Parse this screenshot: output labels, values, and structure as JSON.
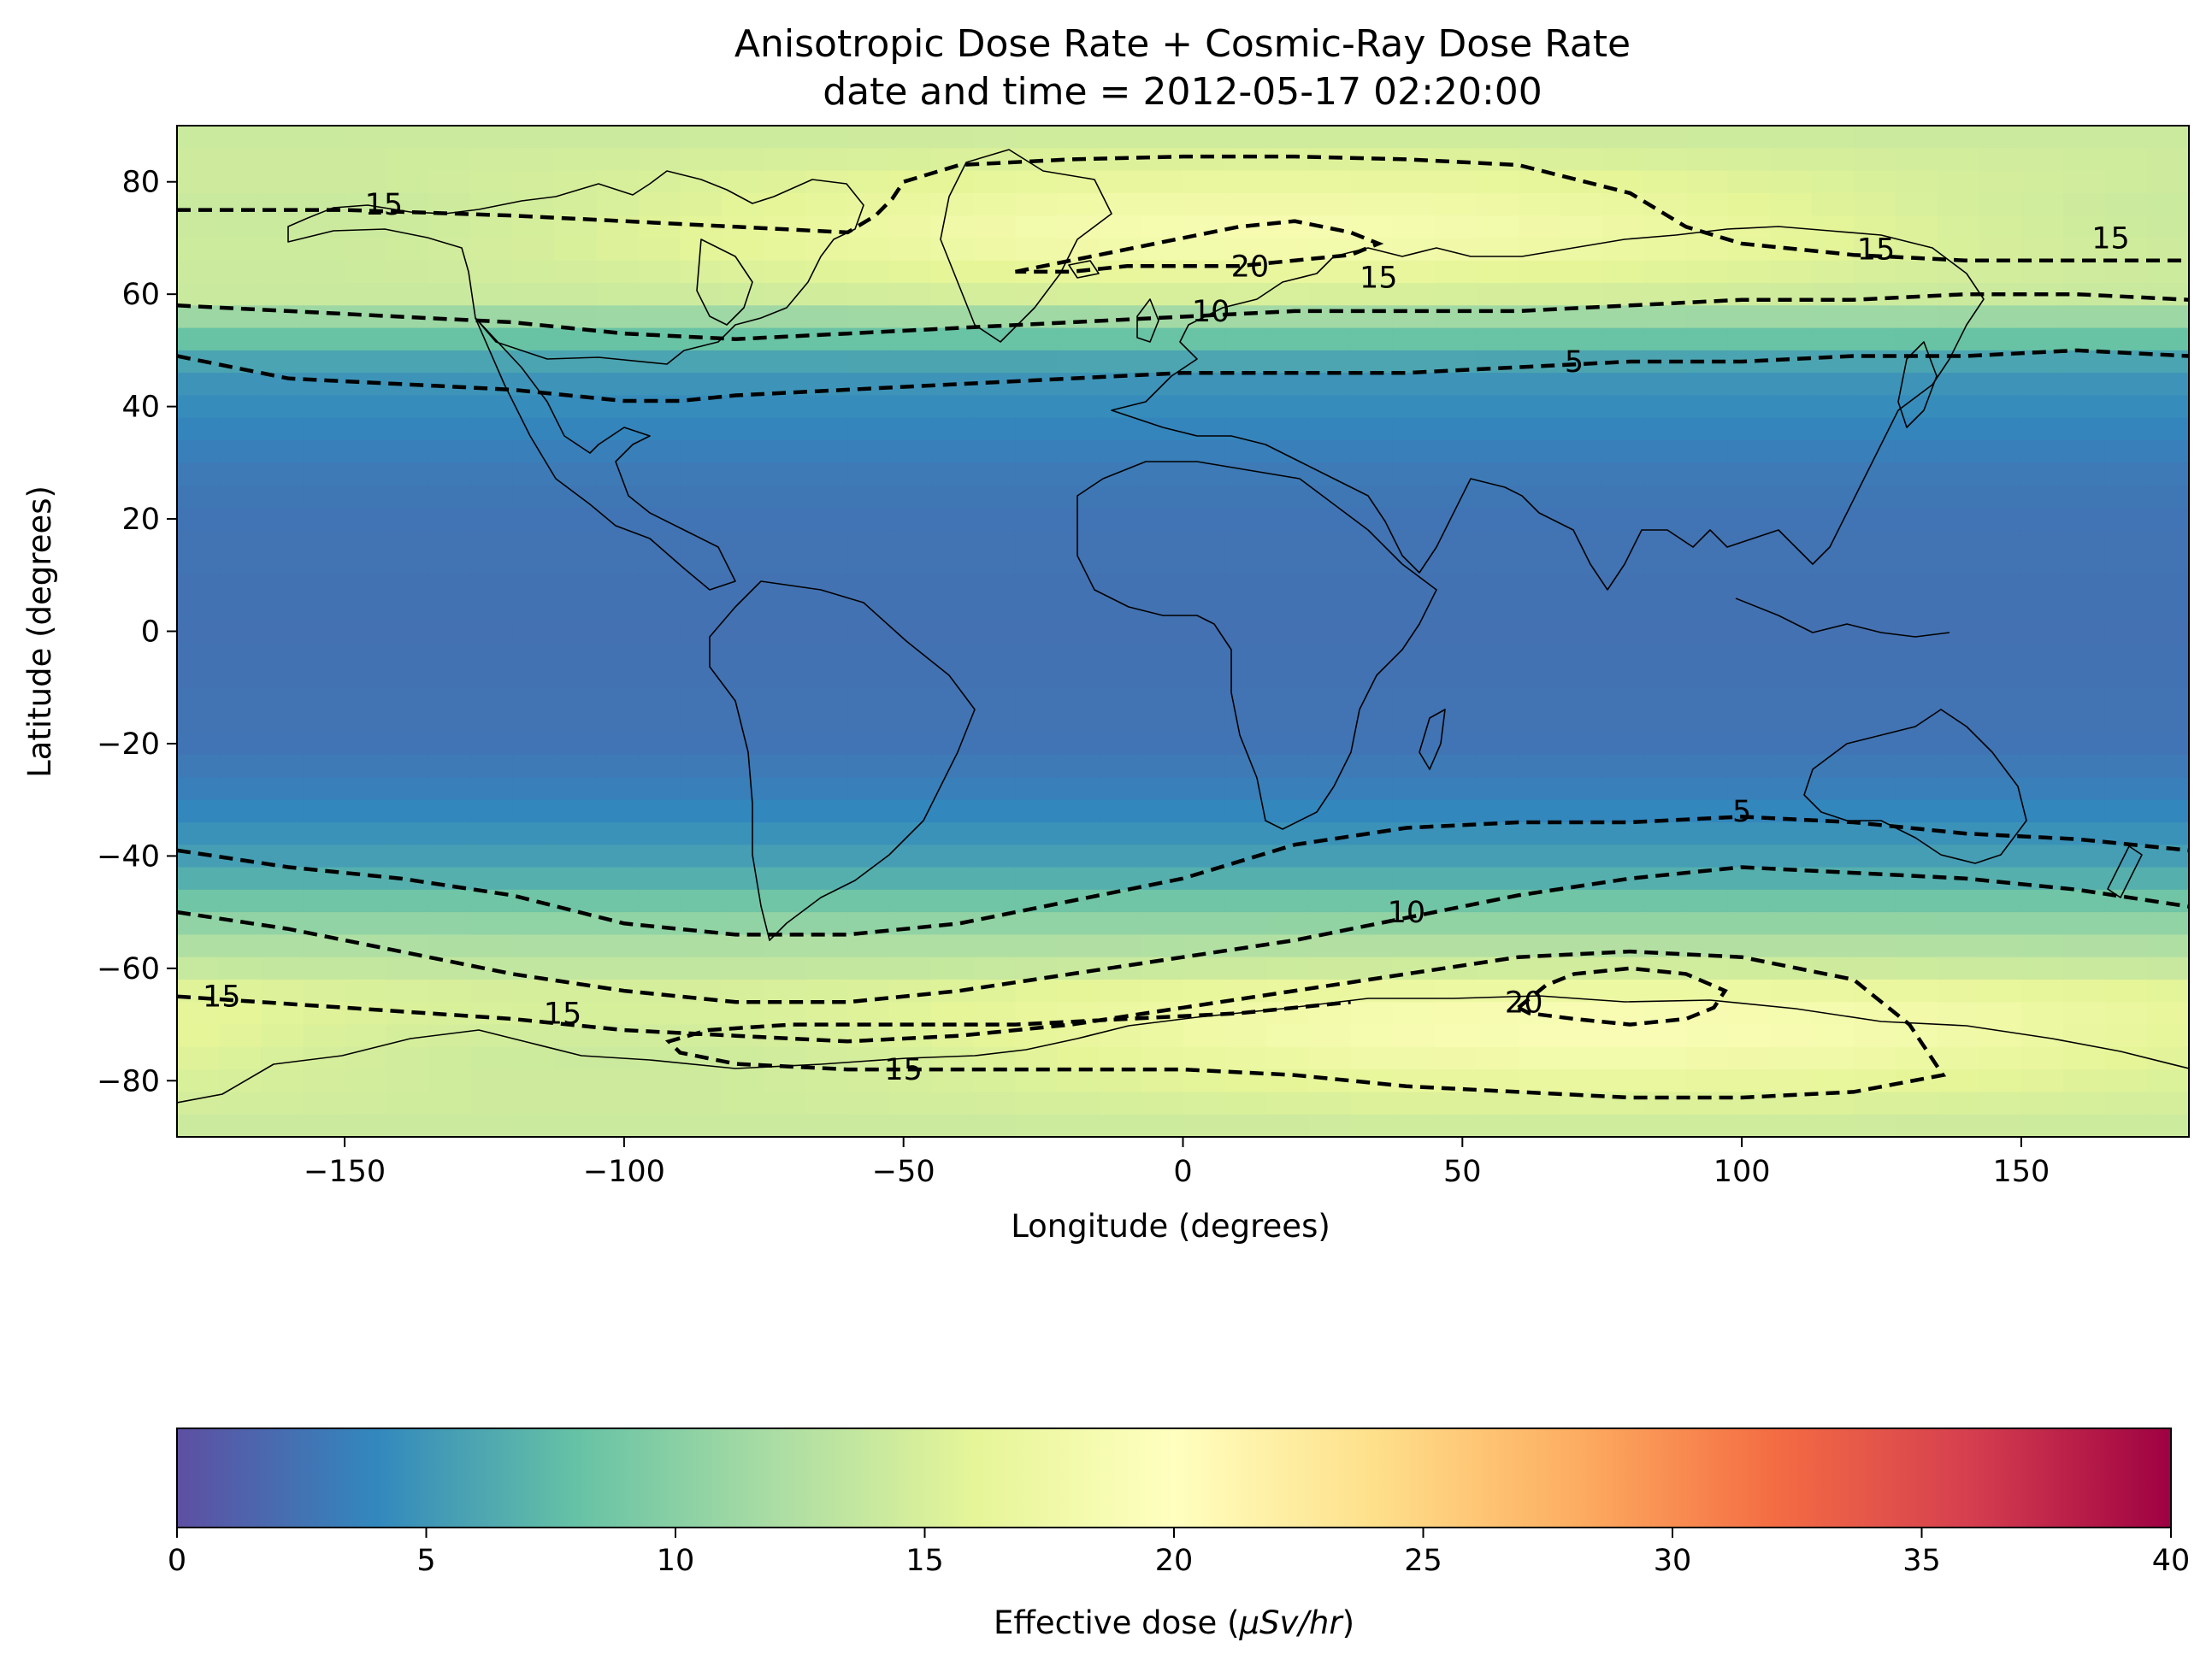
{
  "chart_data": {
    "type": "heatmap",
    "title": "Anisotropic Dose Rate + Cosmic-Ray Dose Rate",
    "subtitle": "date and time = 2012-05-17 02:20:00",
    "xlabel": "Longitude (degrees)",
    "ylabel": "Latitude (degrees)",
    "xlim": [
      -180,
      180
    ],
    "ylim": [
      -90,
      90
    ],
    "x_ticks": [
      -150,
      -100,
      -50,
      0,
      50,
      100,
      150
    ],
    "y_ticks": [
      80,
      60,
      40,
      20,
      0,
      -20,
      -40,
      -60,
      -80
    ],
    "x_tick_labels": [
      "−150",
      "−100",
      "−50",
      "0",
      "50",
      "100",
      "150"
    ],
    "y_tick_labels": [
      "80",
      "60",
      "40",
      "20",
      "0",
      "−20",
      "−40",
      "−60",
      "−80"
    ],
    "grid": false,
    "colormap": "Spectral_r",
    "colormap_stops": [
      "#5e4fa2",
      "#3288bd",
      "#66c2a5",
      "#abdda4",
      "#e6f598",
      "#ffffbf",
      "#fee08b",
      "#fdae61",
      "#f46d43",
      "#d53e4f",
      "#9e0142"
    ],
    "colorbar": {
      "label": "Effective dose (μSv/hr)",
      "label_prefix": "Effective dose (",
      "label_units": "μSv/hr",
      "label_suffix": ")",
      "range": [
        0,
        40
      ],
      "ticks": [
        0,
        5,
        10,
        15,
        20,
        25,
        30,
        35,
        40
      ],
      "tick_labels": [
        "0",
        "5",
        "10",
        "15",
        "20",
        "25",
        "30",
        "35",
        "40"
      ]
    },
    "dose_profile_by_latitude": {
      "latitudes": [
        -90,
        -80,
        -70,
        -65,
        -60,
        -55,
        -50,
        -45,
        -40,
        -35,
        -30,
        -20,
        0,
        20,
        30,
        35,
        40,
        45,
        50,
        55,
        60,
        65,
        70,
        80,
        90
      ],
      "dose_values": [
        14,
        15.5,
        17,
        16.5,
        14,
        12,
        9.5,
        7,
        5.5,
        4.5,
        3.6,
        2.6,
        2.4,
        2.6,
        3.1,
        3.7,
        4.3,
        5,
        6.6,
        10.5,
        14.5,
        15.6,
        16.5,
        15.5,
        14
      ]
    },
    "contour_levels": [
      5,
      10,
      15,
      20
    ],
    "contour_line_style": "dashed",
    "contour_labels": [
      {
        "text": "15",
        "lon": -143,
        "lat": 76
      },
      {
        "text": "20",
        "lon": 12,
        "lat": 65
      },
      {
        "text": "15",
        "lon": 35,
        "lat": 63
      },
      {
        "text": "10",
        "lon": 5,
        "lat": 57
      },
      {
        "text": "15",
        "lon": 124,
        "lat": 68
      },
      {
        "text": "15",
        "lon": 166,
        "lat": 70
      },
      {
        "text": "5",
        "lon": 70,
        "lat": 48
      },
      {
        "text": "5",
        "lon": 100,
        "lat": -32
      },
      {
        "text": "10",
        "lon": 40,
        "lat": -50
      },
      {
        "text": "20",
        "lon": 61,
        "lat": -66
      },
      {
        "text": "15",
        "lon": -172,
        "lat": -65
      },
      {
        "text": "15",
        "lon": -111,
        "lat": -68
      },
      {
        "text": "15",
        "lon": -50,
        "lat": -78
      }
    ],
    "contours": [
      {
        "level": 5,
        "lon": [
          -180,
          -160,
          -140,
          -120,
          -100,
          -90,
          -80,
          -60,
          -40,
          -20,
          0,
          20,
          40,
          60,
          80,
          100,
          120,
          140,
          160,
          180
        ],
        "lat": [
          49,
          45,
          44,
          43,
          41,
          41,
          42,
          43,
          44,
          45,
          46,
          46,
          46,
          47,
          48,
          48,
          49,
          49,
          50,
          49
        ]
      },
      {
        "level": 5,
        "lon": [
          -180,
          -160,
          -140,
          -120,
          -100,
          -80,
          -60,
          -40,
          -20,
          0,
          20,
          40,
          60,
          80,
          100,
          120,
          140,
          160,
          180
        ],
        "lat": [
          -39,
          -42,
          -44,
          -47,
          -52,
          -54,
          -54,
          -52,
          -48,
          -44,
          -38,
          -35,
          -34,
          -34,
          -33,
          -34,
          -36,
          -37,
          -39
        ]
      },
      {
        "level": 10,
        "lon": [
          -180,
          -160,
          -140,
          -120,
          -100,
          -80,
          -60,
          -40,
          -20,
          0,
          20,
          40,
          60,
          80,
          100,
          120,
          140,
          160,
          180
        ],
        "lat": [
          58,
          57,
          56,
          55,
          53,
          52,
          53,
          54,
          55,
          56,
          57,
          57,
          57,
          58,
          59,
          59,
          60,
          60,
          59
        ]
      },
      {
        "level": 10,
        "lon": [
          -180,
          -160,
          -140,
          -120,
          -100,
          -80,
          -60,
          -40,
          -20,
          0,
          20,
          40,
          60,
          80,
          100,
          120,
          140,
          160,
          180
        ],
        "lat": [
          -50,
          -53,
          -57,
          -61,
          -64,
          -66,
          -66,
          -64,
          -61,
          -58,
          -55,
          -51,
          -47,
          -44,
          -42,
          -43,
          -44,
          -46,
          -49
        ]
      },
      {
        "level": 15,
        "lon": [
          -180,
          -150,
          -120,
          -100,
          -80,
          -60,
          -55,
          -52,
          -50,
          -40,
          -20,
          0,
          20,
          40,
          60,
          80,
          85,
          90,
          100,
          120,
          140,
          160,
          180
        ],
        "lat": [
          75,
          75,
          74,
          73,
          72,
          71,
          74,
          77,
          80,
          83,
          84,
          84.5,
          84.5,
          84,
          83,
          78,
          75,
          72,
          69,
          67,
          66,
          66,
          66
        ]
      },
      {
        "level": 15,
        "lon": [
          -180,
          -150,
          -120,
          -100,
          -80,
          -60,
          -40,
          -20,
          0,
          20,
          40,
          60,
          80,
          100,
          120,
          130,
          136,
          120,
          100,
          80,
          60,
          40,
          20,
          0,
          -20,
          -40,
          -60,
          -80,
          -90,
          -92,
          -85,
          -70,
          -50,
          -30,
          -10,
          10,
          30
        ],
        "lat": [
          -65,
          -67,
          -69,
          -71,
          -72,
          -73,
          -72,
          -70,
          -67,
          -64,
          -61,
          -58,
          -57,
          -58,
          -62,
          -70,
          -79,
          -82,
          -83,
          -83,
          -82,
          -81,
          -79,
          -78,
          -78,
          -78,
          -78,
          -77,
          -75,
          -73,
          -71,
          -70,
          -70,
          -70,
          -69,
          -68,
          -66
        ]
      },
      {
        "level": 20,
        "lon": [
          -30,
          -20,
          -10,
          0,
          10,
          20,
          30,
          35,
          30,
          20,
          10,
          0,
          -10,
          -20,
          -30
        ],
        "lat": [
          64,
          66,
          68,
          70,
          72,
          73,
          71,
          69,
          67,
          66,
          65,
          65,
          65,
          64,
          64
        ]
      },
      {
        "level": 20,
        "lon": [
          60,
          65,
          70,
          80,
          90,
          97,
          95,
          90,
          80,
          70,
          62,
          60
        ],
        "lat": [
          -67,
          -63,
          -61,
          -60,
          -61,
          -64,
          -67,
          -69,
          -70,
          -69,
          -68,
          -67
        ]
      }
    ]
  }
}
